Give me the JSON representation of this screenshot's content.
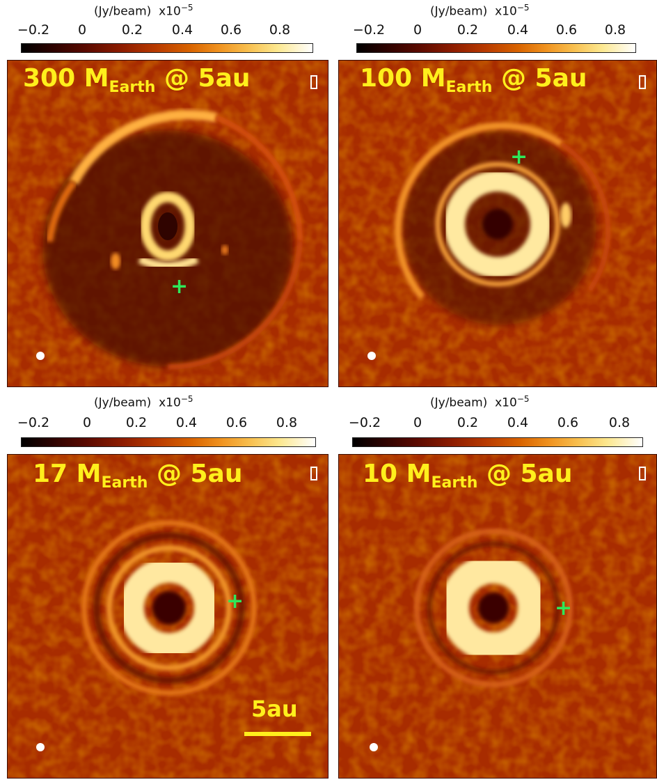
{
  "colorbar": {
    "unit_label": "(Jy/beam)",
    "multiplier": "x10",
    "exponent": "−5",
    "ticks": [
      "−0.2",
      "0",
      "0.2",
      "0.4",
      "0.6",
      "0.8"
    ]
  },
  "panels": [
    {
      "mass": "300",
      "unit_main": "M",
      "unit_sub": "Earth",
      "location": "@ 5au",
      "planet_marker": "+"
    },
    {
      "mass": "100",
      "unit_main": "M",
      "unit_sub": "Earth",
      "location": "@ 5au",
      "planet_marker": "+"
    },
    {
      "mass": "17",
      "unit_main": "M",
      "unit_sub": "Earth",
      "location": "@ 5au",
      "planet_marker": "+"
    },
    {
      "mass": "10",
      "unit_main": "M",
      "unit_sub": "Earth",
      "location": "@ 5au",
      "planet_marker": "+"
    }
  ],
  "scale_bar": {
    "label": "5au"
  },
  "colors": {
    "title": "#ffef1c",
    "marker": "#2ee85a",
    "background": "#a82c00",
    "beam": "#ffffff"
  }
}
